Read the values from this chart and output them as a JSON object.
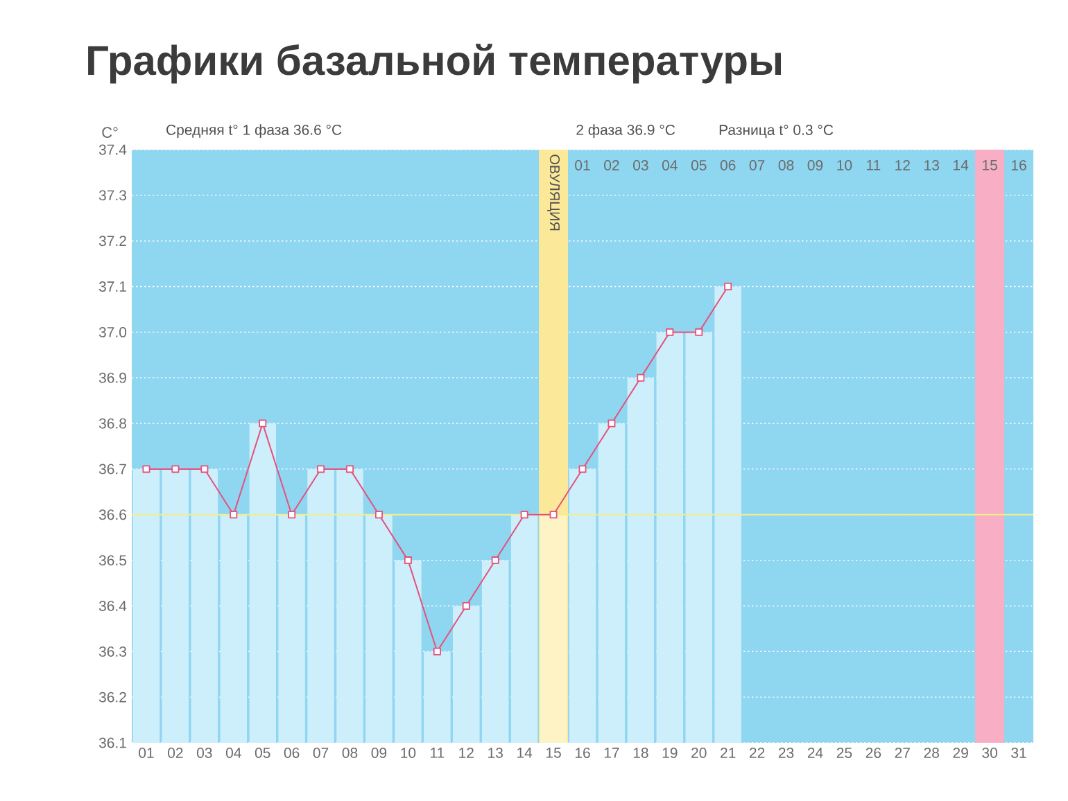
{
  "chart_data": {
    "type": "line",
    "title": "Графики базальной температуры",
    "ylabel": "C°",
    "annotations": [
      "Средняя t° 1 фаза 36.6 °C",
      "2 фаза 36.9 °C",
      "Разница t° 0.3 °C"
    ],
    "categories": [
      "01",
      "02",
      "03",
      "04",
      "05",
      "06",
      "07",
      "08",
      "09",
      "10",
      "11",
      "12",
      "13",
      "14",
      "15",
      "16",
      "17",
      "18",
      "19",
      "20",
      "21",
      "22",
      "23",
      "24",
      "25",
      "26",
      "27",
      "28",
      "29",
      "30",
      "31"
    ],
    "series": [
      {
        "type": "bar",
        "colors": [
          "#cdeefb",
          "#cdeefb",
          "#cdeefb",
          "#cdeefb",
          "#cdeefb",
          "#cdeefb",
          "#cdeefb",
          "#cdeefb",
          "#cdeefb",
          "#cdeefb",
          "#cdeefb",
          "#cdeefb",
          "#cdeefb",
          "#cdeefb",
          "#fdf3c4",
          "#cdeefb",
          "#cdeefb",
          "#cdeefb",
          "#cdeefb",
          "#cdeefb",
          "#cdeefb",
          null,
          null,
          null,
          null,
          null,
          null,
          null,
          null,
          null,
          null
        ],
        "values": [
          36.7,
          36.7,
          36.7,
          36.6,
          36.8,
          36.6,
          36.7,
          36.7,
          36.6,
          36.5,
          36.3,
          36.4,
          36.5,
          36.6,
          36.6,
          36.7,
          36.8,
          36.9,
          37.0,
          37.0,
          37.1,
          null,
          null,
          null,
          null,
          null,
          null,
          null,
          null,
          null,
          null
        ]
      },
      {
        "color": "#e6507c",
        "values": [
          36.7,
          36.7,
          36.7,
          36.6,
          36.8,
          36.6,
          36.7,
          36.7,
          36.6,
          36.5,
          36.3,
          36.4,
          36.5,
          36.6,
          36.6,
          36.7,
          36.8,
          36.9,
          37.0,
          37.0,
          37.1,
          null,
          null,
          null,
          null,
          null,
          null,
          null,
          null,
          null,
          null
        ]
      }
    ],
    "ylim": [
      36.1,
      37.4
    ],
    "yticks": [
      36.1,
      36.2,
      36.3,
      36.4,
      36.5,
      36.6,
      36.7,
      36.8,
      36.9,
      {
        "value": 37.0,
        "label": "37.0"
      },
      37.1,
      37.2,
      37.3,
      37.4
    ],
    "x2lim": [
      -14.5,
      16.5
    ],
    "x2ticks": [
      {
        "value": 1,
        "label": "01"
      },
      {
        "value": 2,
        "label": "02"
      },
      {
        "value": 3,
        "label": "03"
      },
      {
        "value": 4,
        "label": "04"
      },
      {
        "value": 5,
        "label": "05"
      },
      {
        "value": 6,
        "label": "06"
      },
      {
        "value": 7,
        "label": "07"
      },
      {
        "value": 8,
        "label": "08"
      },
      {
        "value": 9,
        "label": "09"
      },
      10,
      11,
      12,
      13,
      14,
      15,
      16
    ],
    "ref_lines": [
      {
        "axis": "y",
        "value": 36.6,
        "color": "#f2ee8a"
      }
    ],
    "bands": [
      {
        "axis": "x",
        "from": "15",
        "to": "15",
        "label": "ОВУЛЯЦИЯ",
        "color": "#fbe999"
      },
      {
        "axis": "x",
        "from": "30",
        "to": "30",
        "color": "#f8afc5"
      }
    ],
    "grid": "y",
    "marker": "square",
    "line_style": "solid"
  }
}
